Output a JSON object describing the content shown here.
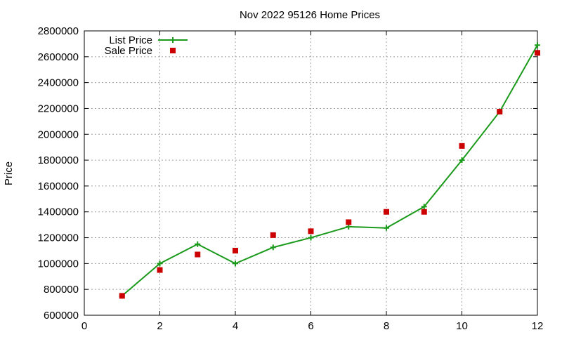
{
  "chart_data": {
    "type": "line",
    "title": "Nov 2022 95126 Home Prices",
    "xlabel": "",
    "ylabel": "Price",
    "xlim": [
      0,
      12
    ],
    "ylim": [
      600000,
      2800000
    ],
    "x_ticks": [
      0,
      2,
      4,
      6,
      8,
      10,
      12
    ],
    "y_ticks": [
      600000,
      800000,
      1000000,
      1200000,
      1400000,
      1600000,
      1800000,
      2000000,
      2200000,
      2400000,
      2600000,
      2800000
    ],
    "grid": true,
    "legend_position": "top-left",
    "series": [
      {
        "name": "List Price",
        "style": "line-points",
        "marker": "plus",
        "color": "#1a9a1a",
        "x": [
          1,
          2,
          3,
          4,
          5,
          6,
          7,
          8,
          9,
          10,
          11,
          12
        ],
        "values": [
          750000,
          1000000,
          1150000,
          1000000,
          1125000,
          1200000,
          1285000,
          1275000,
          1440000,
          1800000,
          2175000,
          2690000
        ]
      },
      {
        "name": "Sale Price",
        "style": "points",
        "marker": "square",
        "color": "#cc0000",
        "x": [
          1,
          2,
          3,
          4,
          5,
          6,
          7,
          8,
          9,
          10,
          11,
          12
        ],
        "values": [
          750000,
          950000,
          1070000,
          1100000,
          1220000,
          1250000,
          1320000,
          1400000,
          1400000,
          1910000,
          2175000,
          2630000
        ]
      }
    ]
  }
}
